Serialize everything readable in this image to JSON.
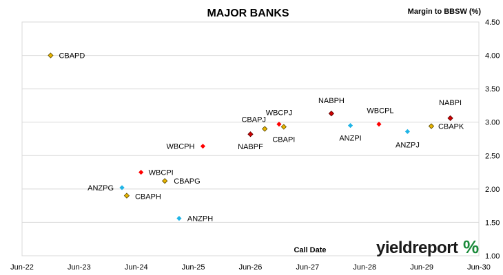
{
  "chart_data": {
    "type": "scatter",
    "title": "MAJOR BANKS",
    "xlabel": "Call Date",
    "ylabel": "Margin to BBSW (%)",
    "x_ticks": [
      "Jun-22",
      "Jun-23",
      "Jun-24",
      "Jun-25",
      "Jun-26",
      "Jun-27",
      "Jun-28",
      "Jun-29",
      "Jun-30"
    ],
    "y_ticks": [
      "1.00",
      "1.50",
      "2.00",
      "2.50",
      "3.00",
      "3.50",
      "4.00",
      "4.50"
    ],
    "ylim": [
      1.0,
      4.5
    ],
    "grid": "horizontal",
    "points": [
      {
        "label": "CBAPD",
        "x": "2022-12",
        "y": 4.0,
        "color": "#e8b400"
      },
      {
        "label": "ANZPG",
        "x": "2024-03",
        "y": 2.02,
        "color": "#1fb4e6"
      },
      {
        "label": "CBAPH",
        "x": "2024-04",
        "y": 1.9,
        "color": "#e8b400"
      },
      {
        "label": "WBCPI",
        "x": "2024-07",
        "y": 2.25,
        "color": "#ff0000"
      },
      {
        "label": "CBAPG",
        "x": "2024-12",
        "y": 2.12,
        "color": "#e8b400"
      },
      {
        "label": "ANZPH",
        "x": "2025-03",
        "y": 1.56,
        "color": "#1fb4e6"
      },
      {
        "label": "WBCPH",
        "x": "2025-08",
        "y": 2.64,
        "color": "#ff0000"
      },
      {
        "label": "NABPF",
        "x": "2026-06",
        "y": 2.82,
        "color": "#cc0000"
      },
      {
        "label": "CBAPJ",
        "x": "2026-09",
        "y": 2.9,
        "color": "#e8b400"
      },
      {
        "label": "WBCPJ",
        "x": "2026-12",
        "y": 2.97,
        "color": "#ff0000"
      },
      {
        "label": "CBAPI",
        "x": "2027-01",
        "y": 2.93,
        "color": "#e8b400"
      },
      {
        "label": "NABPH",
        "x": "2027-11",
        "y": 3.13,
        "color": "#cc0000"
      },
      {
        "label": "ANZPI",
        "x": "2028-03",
        "y": 2.95,
        "color": "#1fb4e6"
      },
      {
        "label": "WBCPL",
        "x": "2028-09",
        "y": 2.97,
        "color": "#ff0000"
      },
      {
        "label": "ANZPJ",
        "x": "2029-03",
        "y": 2.86,
        "color": "#1fb4e6"
      },
      {
        "label": "CBAPK",
        "x": "2029-08",
        "y": 2.94,
        "color": "#e8b400"
      },
      {
        "label": "NABPI",
        "x": "2029-12",
        "y": 3.06,
        "color": "#cc0000"
      }
    ]
  },
  "logo": {
    "text": "yieldreport",
    "symbol": "%"
  }
}
